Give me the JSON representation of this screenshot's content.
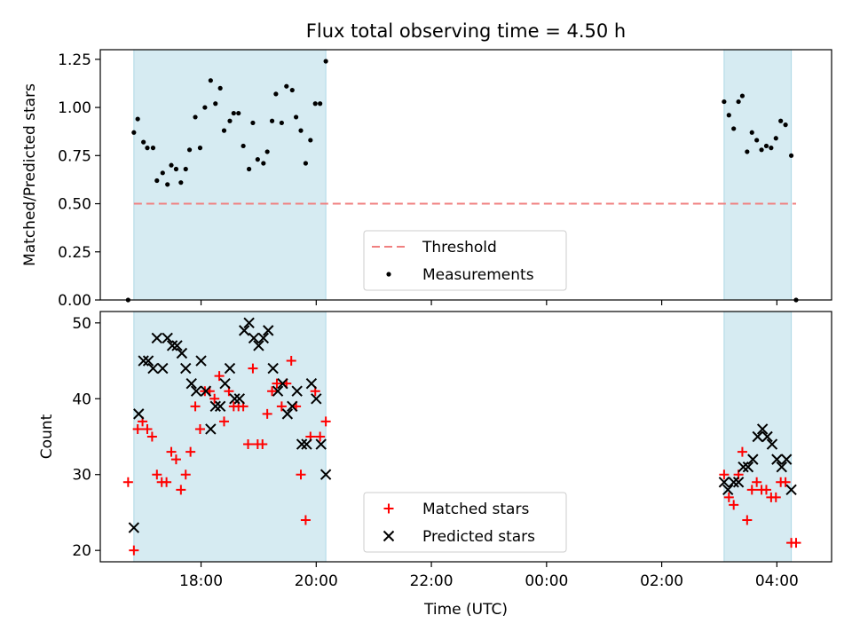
{
  "title": "Flux total observing time = 4.50 h",
  "colors": {
    "shade": "#add8e6",
    "threshold": "#f08080",
    "measurement": "#000000",
    "matched": "#ff0000",
    "predicted": "#000000"
  },
  "chart_data": [
    {
      "type": "scatter",
      "ylabel": "Matched/Predicted stars",
      "ylim": [
        0,
        1.3
      ],
      "yticks": [
        0,
        0.25,
        0.5,
        0.75,
        1.0,
        1.25
      ],
      "ytick_labels": [
        "0.00",
        "0.25",
        "0.50",
        "0.75",
        "1.00",
        "1.25"
      ],
      "xlim_hours": [
        16.25,
        28.95
      ],
      "xticks_hours": [
        18,
        20,
        22,
        24,
        26,
        28
      ],
      "xtick_labels": [
        "18:00",
        "20:00",
        "22:00",
        "00:00",
        "02:00",
        "04:00"
      ],
      "observing_windows": [
        [
          "16:50",
          "20:10"
        ],
        [
          "03:05",
          "04:15"
        ]
      ],
      "threshold": {
        "name": "Threshold",
        "value": 0.5,
        "x_range": [
          "16:50",
          "04:20"
        ]
      },
      "legend": {
        "placement": "lower center",
        "entries": [
          "Threshold",
          "Measurements"
        ]
      },
      "series": [
        {
          "name": "Measurements",
          "points": [
            [
              "16:44",
              0.0
            ],
            [
              "16:50",
              0.87
            ],
            [
              "16:54",
              0.94
            ],
            [
              "17:00",
              0.82
            ],
            [
              "17:04",
              0.79
            ],
            [
              "17:10",
              0.79
            ],
            [
              "17:14",
              0.62
            ],
            [
              "17:20",
              0.66
            ],
            [
              "17:25",
              0.6
            ],
            [
              "17:29",
              0.7
            ],
            [
              "17:34",
              0.68
            ],
            [
              "17:39",
              0.61
            ],
            [
              "17:44",
              0.68
            ],
            [
              "17:48",
              0.78
            ],
            [
              "17:54",
              0.95
            ],
            [
              "17:59",
              0.79
            ],
            [
              "18:04",
              1.0
            ],
            [
              "18:10",
              1.14
            ],
            [
              "18:15",
              1.02
            ],
            [
              "18:20",
              1.1
            ],
            [
              "18:24",
              0.88
            ],
            [
              "18:30",
              0.93
            ],
            [
              "18:34",
              0.97
            ],
            [
              "18:39",
              0.97
            ],
            [
              "18:44",
              0.8
            ],
            [
              "18:50",
              0.68
            ],
            [
              "18:54",
              0.92
            ],
            [
              "18:59",
              0.73
            ],
            [
              "19:05",
              0.71
            ],
            [
              "19:09",
              0.77
            ],
            [
              "19:14",
              0.93
            ],
            [
              "19:18",
              1.07
            ],
            [
              "19:24",
              0.92
            ],
            [
              "19:29",
              1.11
            ],
            [
              "19:35",
              1.09
            ],
            [
              "19:39",
              0.95
            ],
            [
              "19:44",
              0.88
            ],
            [
              "19:49",
              0.71
            ],
            [
              "19:54",
              0.83
            ],
            [
              "19:59",
              1.02
            ],
            [
              "20:04",
              1.02
            ],
            [
              "20:10",
              1.24
            ],
            [
              "03:05",
              1.03
            ],
            [
              "03:10",
              0.96
            ],
            [
              "03:15",
              0.89
            ],
            [
              "03:20",
              1.03
            ],
            [
              "03:24",
              1.06
            ],
            [
              "03:29",
              0.77
            ],
            [
              "03:34",
              0.87
            ],
            [
              "03:39",
              0.83
            ],
            [
              "03:44",
              0.78
            ],
            [
              "03:49",
              0.8
            ],
            [
              "03:54",
              0.79
            ],
            [
              "03:59",
              0.84
            ],
            [
              "04:04",
              0.93
            ],
            [
              "04:09",
              0.91
            ],
            [
              "04:15",
              0.75
            ],
            [
              "04:20",
              0.0
            ]
          ]
        }
      ]
    },
    {
      "type": "scatter",
      "xlabel": "Time (UTC)",
      "ylabel": "Count",
      "ylim": [
        18.5,
        51.5
      ],
      "yticks": [
        20,
        30,
        40,
        50
      ],
      "ytick_labels": [
        "20",
        "30",
        "40",
        "50"
      ],
      "xlim_hours": [
        16.25,
        28.95
      ],
      "xticks_hours": [
        18,
        20,
        22,
        24,
        26,
        28
      ],
      "xtick_labels": [
        "18:00",
        "20:00",
        "22:00",
        "00:00",
        "02:00",
        "04:00"
      ],
      "observing_windows": [
        [
          "16:50",
          "20:10"
        ],
        [
          "03:05",
          "04:15"
        ]
      ],
      "legend": {
        "placement": "lower center",
        "entries": [
          "Matched stars",
          "Predicted stars"
        ]
      },
      "series": [
        {
          "name": "Matched stars",
          "marker": "+",
          "points": [
            [
              "16:44",
              29
            ],
            [
              "16:50",
              20
            ],
            [
              "16:54",
              36
            ],
            [
              "16:59",
              37
            ],
            [
              "17:04",
              36
            ],
            [
              "17:09",
              35
            ],
            [
              "17:14",
              30
            ],
            [
              "17:19",
              29
            ],
            [
              "17:24",
              29
            ],
            [
              "17:29",
              33
            ],
            [
              "17:34",
              32
            ],
            [
              "17:39",
              28
            ],
            [
              "17:44",
              30
            ],
            [
              "17:49",
              33
            ],
            [
              "17:54",
              39
            ],
            [
              "17:59",
              36
            ],
            [
              "18:04",
              41
            ],
            [
              "18:09",
              41
            ],
            [
              "18:14",
              40
            ],
            [
              "18:19",
              43
            ],
            [
              "18:24",
              37
            ],
            [
              "18:29",
              41
            ],
            [
              "18:34",
              39
            ],
            [
              "18:39",
              39
            ],
            [
              "18:44",
              39
            ],
            [
              "18:49",
              34
            ],
            [
              "18:54",
              44
            ],
            [
              "18:59",
              34
            ],
            [
              "19:04",
              34
            ],
            [
              "19:09",
              38
            ],
            [
              "19:14",
              41
            ],
            [
              "19:19",
              42
            ],
            [
              "19:24",
              39
            ],
            [
              "19:29",
              42
            ],
            [
              "19:34",
              45
            ],
            [
              "19:39",
              39
            ],
            [
              "19:44",
              30
            ],
            [
              "19:49",
              24
            ],
            [
              "19:54",
              35
            ],
            [
              "19:59",
              41
            ],
            [
              "20:04",
              35
            ],
            [
              "20:10",
              37
            ],
            [
              "03:05",
              30
            ],
            [
              "03:10",
              27
            ],
            [
              "03:15",
              26
            ],
            [
              "03:20",
              30
            ],
            [
              "03:24",
              33
            ],
            [
              "03:29",
              24
            ],
            [
              "03:34",
              28
            ],
            [
              "03:39",
              29
            ],
            [
              "03:44",
              28
            ],
            [
              "03:49",
              28
            ],
            [
              "03:54",
              27
            ],
            [
              "03:59",
              27
            ],
            [
              "04:04",
              29
            ],
            [
              "04:09",
              29
            ],
            [
              "04:15",
              21
            ],
            [
              "04:20",
              21
            ]
          ]
        },
        {
          "name": "Predicted stars",
          "marker": "x",
          "points": [
            [
              "16:50",
              23
            ],
            [
              "16:55",
              38
            ],
            [
              "17:00",
              45
            ],
            [
              "17:05",
              45
            ],
            [
              "17:10",
              44
            ],
            [
              "17:14",
              48
            ],
            [
              "17:20",
              44
            ],
            [
              "17:25",
              48
            ],
            [
              "17:30",
              47
            ],
            [
              "17:35",
              47
            ],
            [
              "17:40",
              46
            ],
            [
              "17:44",
              44
            ],
            [
              "17:50",
              42
            ],
            [
              "17:55",
              41
            ],
            [
              "18:00",
              45
            ],
            [
              "18:05",
              41
            ],
            [
              "18:10",
              36
            ],
            [
              "18:15",
              39
            ],
            [
              "18:20",
              39
            ],
            [
              "18:25",
              42
            ],
            [
              "18:30",
              44
            ],
            [
              "18:35",
              40
            ],
            [
              "18:40",
              40
            ],
            [
              "18:45",
              49
            ],
            [
              "18:50",
              50
            ],
            [
              "18:55",
              48
            ],
            [
              "19:00",
              47
            ],
            [
              "19:05",
              48
            ],
            [
              "19:10",
              49
            ],
            [
              "19:15",
              44
            ],
            [
              "19:20",
              41
            ],
            [
              "19:25",
              42
            ],
            [
              "19:30",
              38
            ],
            [
              "19:35",
              39
            ],
            [
              "19:40",
              41
            ],
            [
              "19:45",
              34
            ],
            [
              "19:50",
              34
            ],
            [
              "19:55",
              42
            ],
            [
              "20:00",
              40
            ],
            [
              "20:05",
              34
            ],
            [
              "20:10",
              30
            ],
            [
              "03:05",
              29
            ],
            [
              "03:09",
              28
            ],
            [
              "03:15",
              29
            ],
            [
              "03:20",
              29
            ],
            [
              "03:25",
              31
            ],
            [
              "03:30",
              31
            ],
            [
              "03:35",
              32
            ],
            [
              "03:40",
              35
            ],
            [
              "03:45",
              36
            ],
            [
              "03:50",
              35
            ],
            [
              "03:55",
              34
            ],
            [
              "04:00",
              32
            ],
            [
              "04:05",
              31
            ],
            [
              "04:10",
              32
            ],
            [
              "04:15",
              28
            ]
          ]
        }
      ]
    }
  ]
}
